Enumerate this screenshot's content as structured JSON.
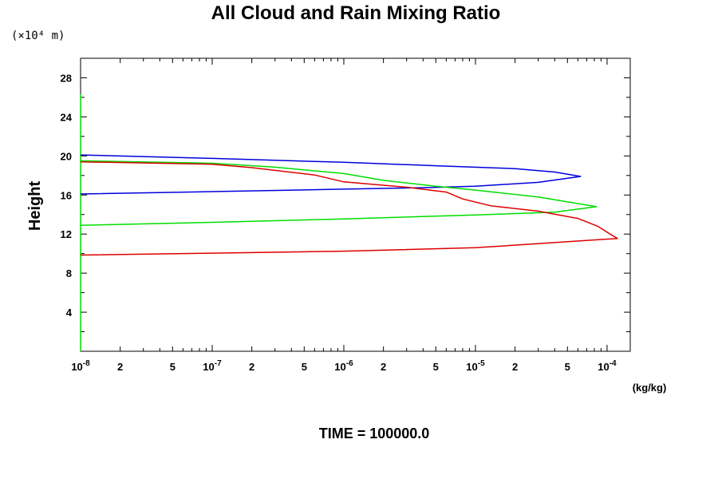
{
  "chart_data": {
    "type": "line",
    "title": "All Cloud and Rain Mixing Ratio",
    "ylabel": "Height",
    "y_unit": "(×10⁴ m)",
    "x_unit": "(kg/kg)",
    "footer": "TIME = 100000.0",
    "x_scale": "log",
    "xlim": [
      1e-08,
      0.00015
    ],
    "ylim": [
      0,
      30
    ],
    "grid": false,
    "y_ticks": [
      4,
      8,
      12,
      16,
      20,
      24,
      28
    ],
    "y_tick_labels": [
      "4",
      "8",
      "12",
      "16",
      "20",
      "24",
      "28"
    ],
    "x_tick_labels": [
      {
        "value": 1e-08,
        "base": "10",
        "exp": "-8"
      },
      {
        "value": 2e-08,
        "base": "2",
        "exp": ""
      },
      {
        "value": 5e-08,
        "base": "5",
        "exp": ""
      },
      {
        "value": 1e-07,
        "base": "10",
        "exp": "-7"
      },
      {
        "value": 2e-07,
        "base": "2",
        "exp": ""
      },
      {
        "value": 5e-07,
        "base": "5",
        "exp": ""
      },
      {
        "value": 1e-06,
        "base": "10",
        "exp": "-6"
      },
      {
        "value": 2e-06,
        "base": "2",
        "exp": ""
      },
      {
        "value": 5e-06,
        "base": "5",
        "exp": ""
      },
      {
        "value": 1e-05,
        "base": "10",
        "exp": "-5"
      },
      {
        "value": 2e-05,
        "base": "2",
        "exp": ""
      },
      {
        "value": 5e-05,
        "base": "5",
        "exp": ""
      },
      {
        "value": 0.0001,
        "base": "10",
        "exp": "-4"
      }
    ],
    "series": [
      {
        "color": "#0000dd",
        "points": [
          [
            1e-08,
            20.1
          ],
          [
            1e-07,
            19.75
          ],
          [
            1e-06,
            19.35
          ],
          [
            5e-06,
            19.0
          ],
          [
            2e-05,
            18.7
          ],
          [
            4e-05,
            18.35
          ],
          [
            6.3e-05,
            17.9
          ],
          [
            3e-05,
            17.3
          ],
          [
            1e-05,
            16.9
          ],
          [
            4e-06,
            16.75
          ],
          [
            1e-06,
            16.6
          ],
          [
            1e-07,
            16.35
          ],
          [
            1e-08,
            16.1
          ]
        ]
      },
      {
        "color": "#00dd00",
        "points": [
          [
            1e-08,
            19.5
          ],
          [
            1e-07,
            19.25
          ],
          [
            3e-07,
            18.85
          ],
          [
            1e-06,
            18.2
          ],
          [
            2e-06,
            17.5
          ],
          [
            5e-06,
            16.9
          ],
          [
            1e-05,
            16.5
          ],
          [
            3e-05,
            15.8
          ],
          [
            8.3e-05,
            14.8
          ],
          [
            4e-05,
            14.25
          ],
          [
            1e-05,
            13.95
          ],
          [
            1e-06,
            13.55
          ],
          [
            1e-07,
            13.2
          ],
          [
            1e-08,
            12.9
          ]
        ]
      },
      {
        "color": "#dd0000",
        "points": [
          [
            1e-08,
            19.4
          ],
          [
            1e-07,
            19.15
          ],
          [
            2e-07,
            18.8
          ],
          [
            6e-07,
            18.05
          ],
          [
            1e-06,
            17.35
          ],
          [
            3e-06,
            16.8
          ],
          [
            6e-06,
            16.3
          ],
          [
            8e-06,
            15.6
          ],
          [
            1.3e-05,
            14.9
          ],
          [
            3e-05,
            14.35
          ],
          [
            6e-05,
            13.6
          ],
          [
            8.5e-05,
            12.8
          ],
          [
            0.0001,
            12.2
          ],
          [
            0.00012,
            11.55
          ],
          [
            1e-05,
            10.6
          ],
          [
            1e-06,
            10.25
          ],
          [
            1e-07,
            10.05
          ],
          [
            1e-08,
            9.85
          ]
        ]
      }
    ]
  }
}
